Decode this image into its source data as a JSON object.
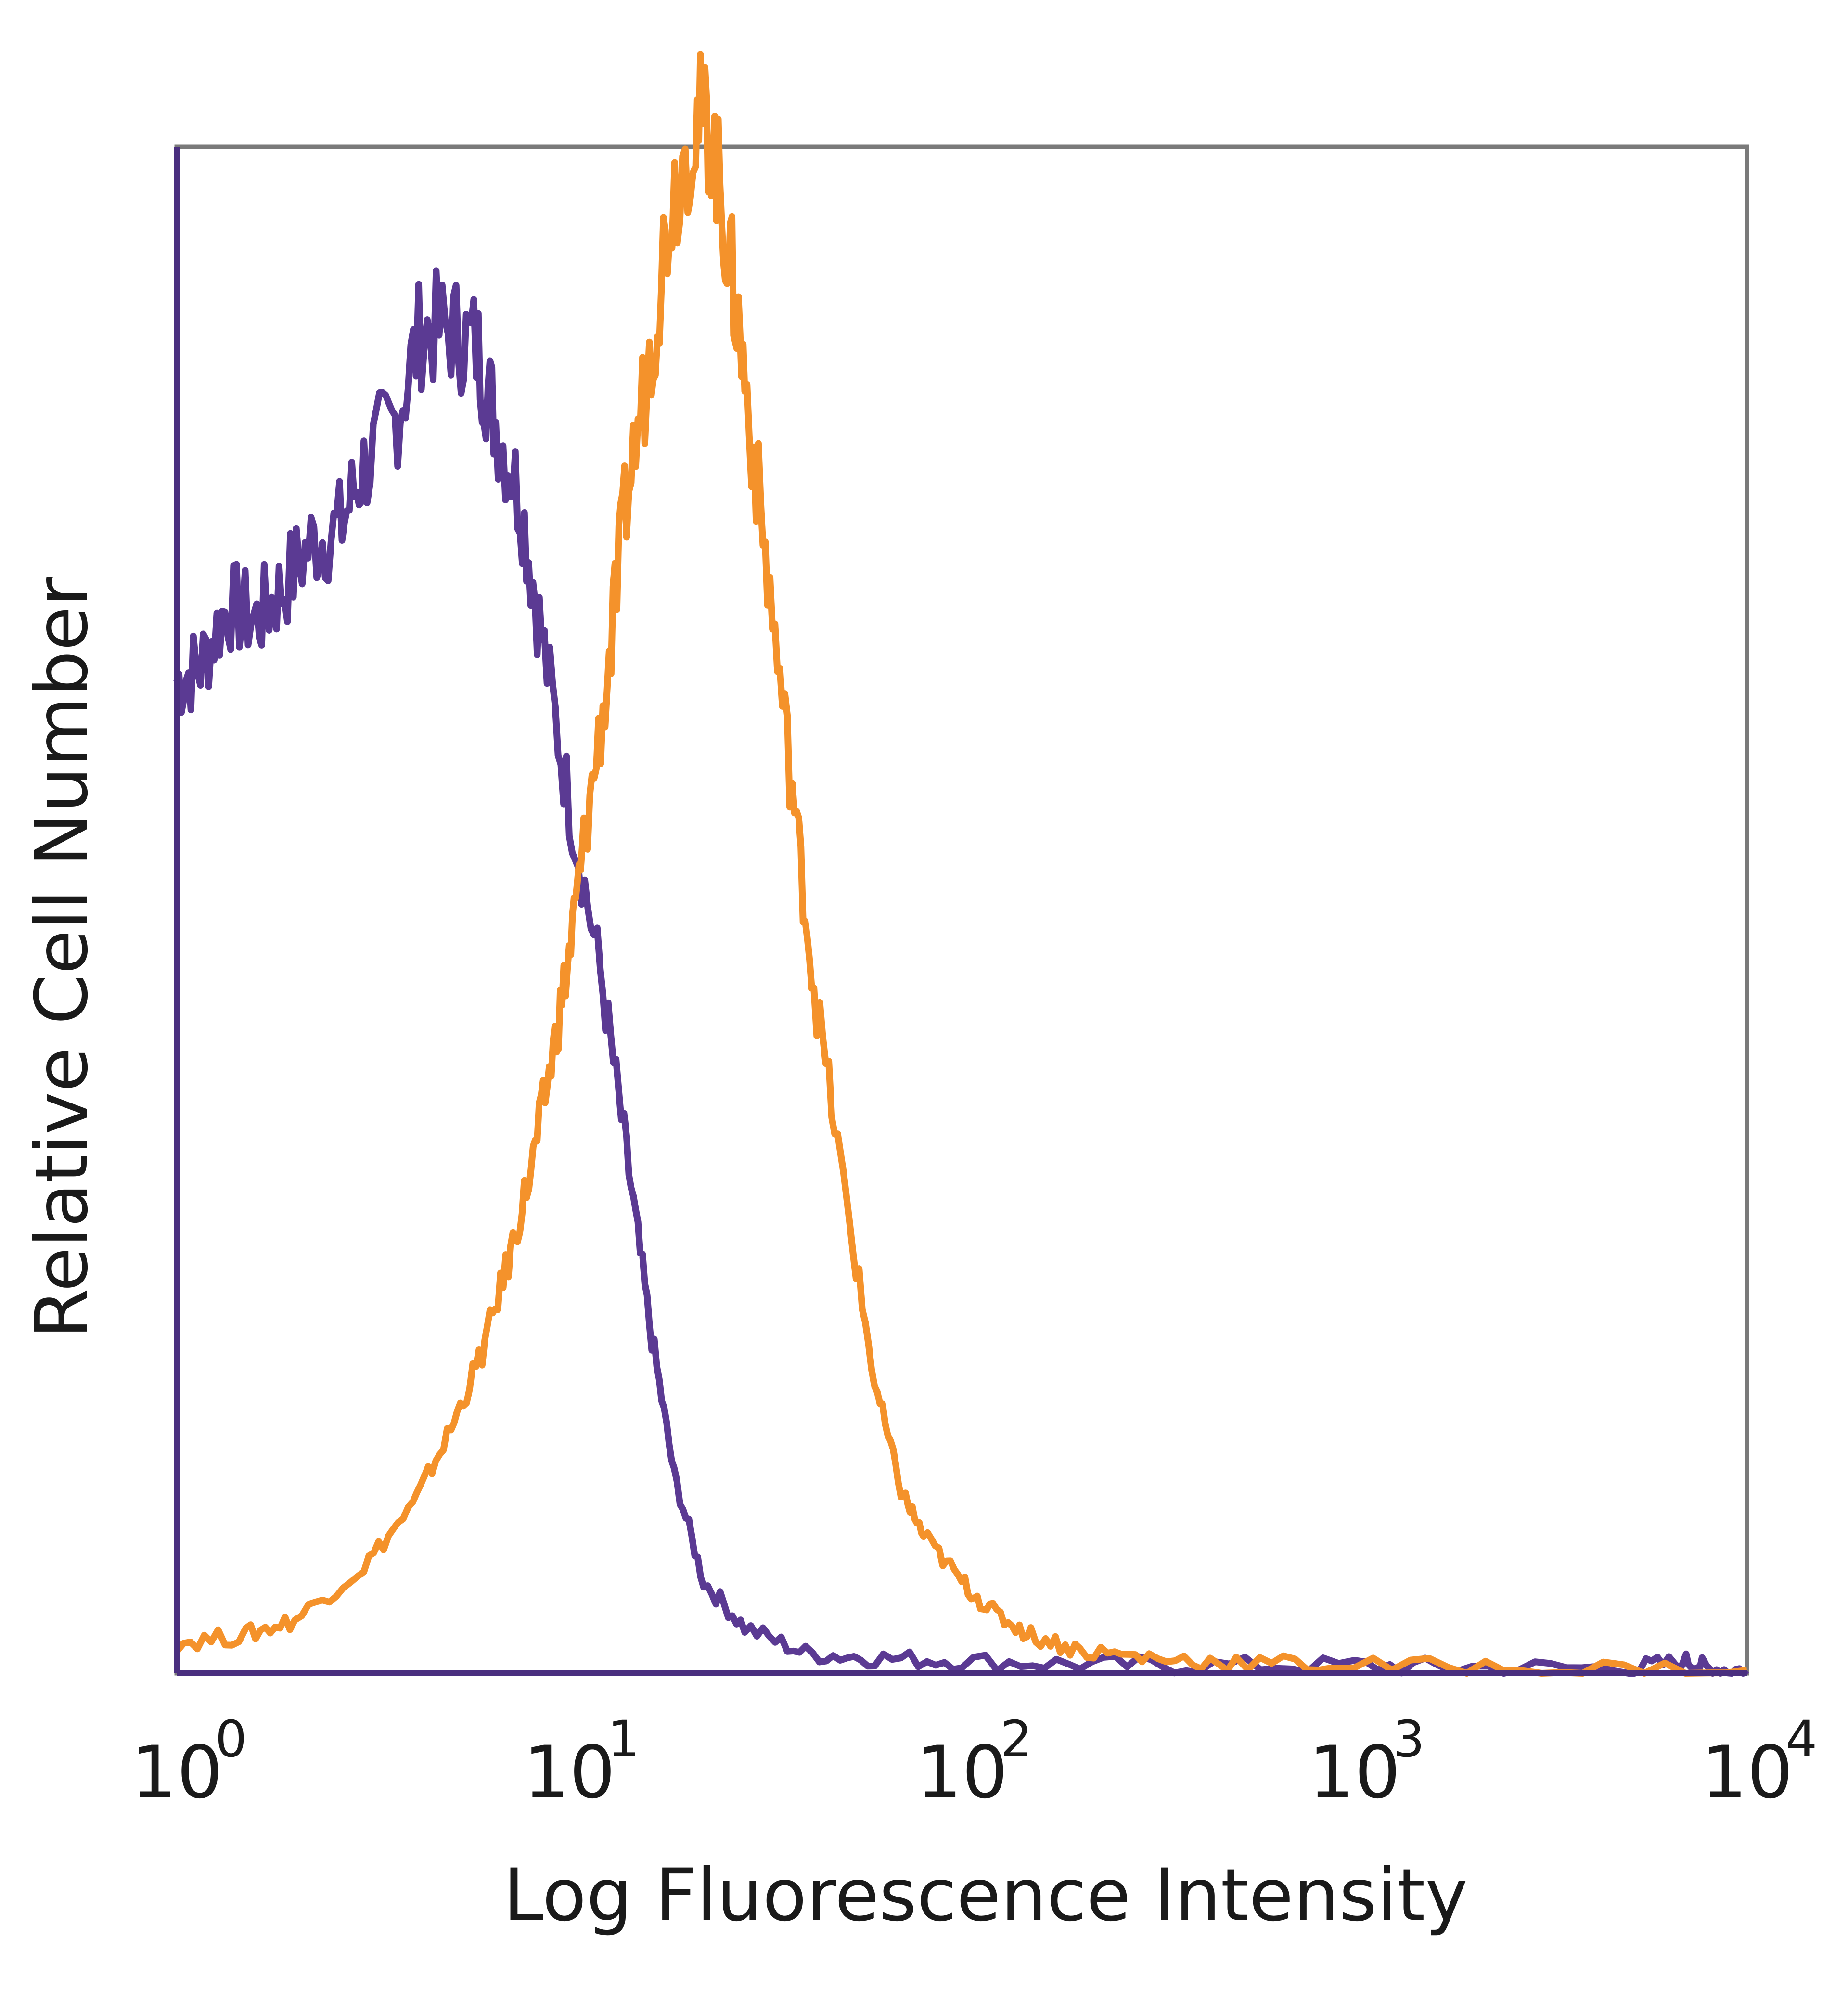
{
  "chart_data": {
    "type": "line",
    "xlabel": "Log Fluorescence Intensity",
    "ylabel": "Relative Cell Number",
    "xscale": "log",
    "xlim": [
      1,
      10000
    ],
    "ylim": [
      0,
      100
    ],
    "grid": false,
    "legend": "none",
    "x_ticks": [
      {
        "base": "10",
        "exp": "0"
      },
      {
        "base": "10",
        "exp": "1"
      },
      {
        "base": "10",
        "exp": "2"
      },
      {
        "base": "10",
        "exp": "3"
      },
      {
        "base": "10",
        "exp": "4"
      }
    ],
    "series": [
      {
        "color": "#5b3a93",
        "points": [
          [
            1.0,
            65
          ],
          [
            1.15,
            66
          ],
          [
            1.35,
            70
          ],
          [
            1.6,
            69
          ],
          [
            1.85,
            71
          ],
          [
            2.2,
            74
          ],
          [
            2.6,
            75
          ],
          [
            3.0,
            79
          ],
          [
            3.6,
            82
          ],
          [
            4.2,
            88
          ],
          [
            5.0,
            88
          ],
          [
            5.8,
            87
          ],
          [
            6.5,
            82
          ],
          [
            7.5,
            77
          ],
          [
            8.5,
            68
          ],
          [
            10.0,
            57
          ],
          [
            12.0,
            46
          ],
          [
            14.0,
            34
          ],
          [
            16.0,
            23
          ],
          [
            18.5,
            13
          ],
          [
            22.0,
            6
          ],
          [
            28.0,
            3
          ],
          [
            40.0,
            1.3
          ],
          [
            60.0,
            1
          ],
          [
            100.0,
            0.8
          ],
          [
            200.0,
            0.6
          ],
          [
            400.0,
            0.5
          ],
          [
            1000.0,
            0.5
          ],
          [
            2000.0,
            0.4
          ],
          [
            5000.0,
            0.3
          ],
          [
            7000.0,
            0.8
          ],
          [
            8000.0,
            0.3
          ],
          [
            10000.0,
            0.2
          ]
        ]
      },
      {
        "color": "#f4922b",
        "points": [
          [
            1.0,
            2
          ],
          [
            1.5,
            2.5
          ],
          [
            2.0,
            3.5
          ],
          [
            3.0,
            7
          ],
          [
            4.0,
            11
          ],
          [
            5.0,
            16
          ],
          [
            6.0,
            21
          ],
          [
            7.0,
            27
          ],
          [
            8.0,
            33
          ],
          [
            9.0,
            40
          ],
          [
            10.0,
            47
          ],
          [
            11.0,
            55
          ],
          [
            12.5,
            65
          ],
          [
            14.0,
            77
          ],
          [
            16.0,
            86
          ],
          [
            18.0,
            96
          ],
          [
            21.0,
            102
          ],
          [
            23.0,
            101
          ],
          [
            25.5,
            93
          ],
          [
            28.0,
            85
          ],
          [
            32.0,
            72
          ],
          [
            37.0,
            58
          ],
          [
            42.0,
            45
          ],
          [
            50.0,
            32
          ],
          [
            60.0,
            19
          ],
          [
            70.0,
            12
          ],
          [
            80.0,
            9
          ],
          [
            100.0,
            6
          ],
          [
            120.0,
            4
          ],
          [
            150.0,
            2.5
          ],
          [
            200.0,
            1.5
          ],
          [
            300.0,
            1.0
          ],
          [
            500.0,
            0.7
          ],
          [
            1000.0,
            0.5
          ],
          [
            3000.0,
            0.3
          ],
          [
            10000.0,
            0.2
          ]
        ]
      }
    ]
  }
}
